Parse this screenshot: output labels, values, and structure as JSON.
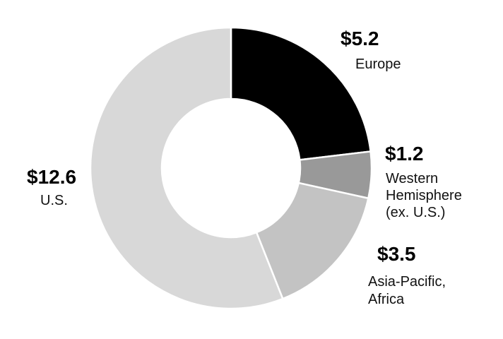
{
  "chart_data": {
    "type": "pie",
    "variant": "donut",
    "title": "",
    "direction": "clockwise",
    "start_angle_deg": 0,
    "inner_radius_ratio": 0.49,
    "separator_color": "#ffffff",
    "background_color": "#ffffff",
    "total": 22.5,
    "segments": [
      {
        "label": "Europe",
        "value": 5.2,
        "display_value": "$5.2",
        "color": "#000000"
      },
      {
        "label": "Western Hemisphere (ex. U.S.)",
        "value": 1.2,
        "display_value": "$1.2",
        "color": "#999999"
      },
      {
        "label": "Asia-Pacific, Africa",
        "value": 3.5,
        "display_value": "$3.5",
        "color": "#c3c3c3"
      },
      {
        "label": "U.S.",
        "value": 12.6,
        "display_value": "$12.6",
        "color": "#d8d8d8"
      }
    ]
  },
  "annotations": [
    {
      "value": "$5.2",
      "lines": [
        "Europe"
      ]
    },
    {
      "value": "$1.2",
      "lines": [
        "Western",
        "Hemisphere",
        "(ex. U.S.)"
      ]
    },
    {
      "value": "$3.5",
      "lines": [
        "Asia-Pacific,",
        "Africa"
      ]
    },
    {
      "value": "$12.6",
      "lines": [
        "U.S."
      ]
    }
  ]
}
